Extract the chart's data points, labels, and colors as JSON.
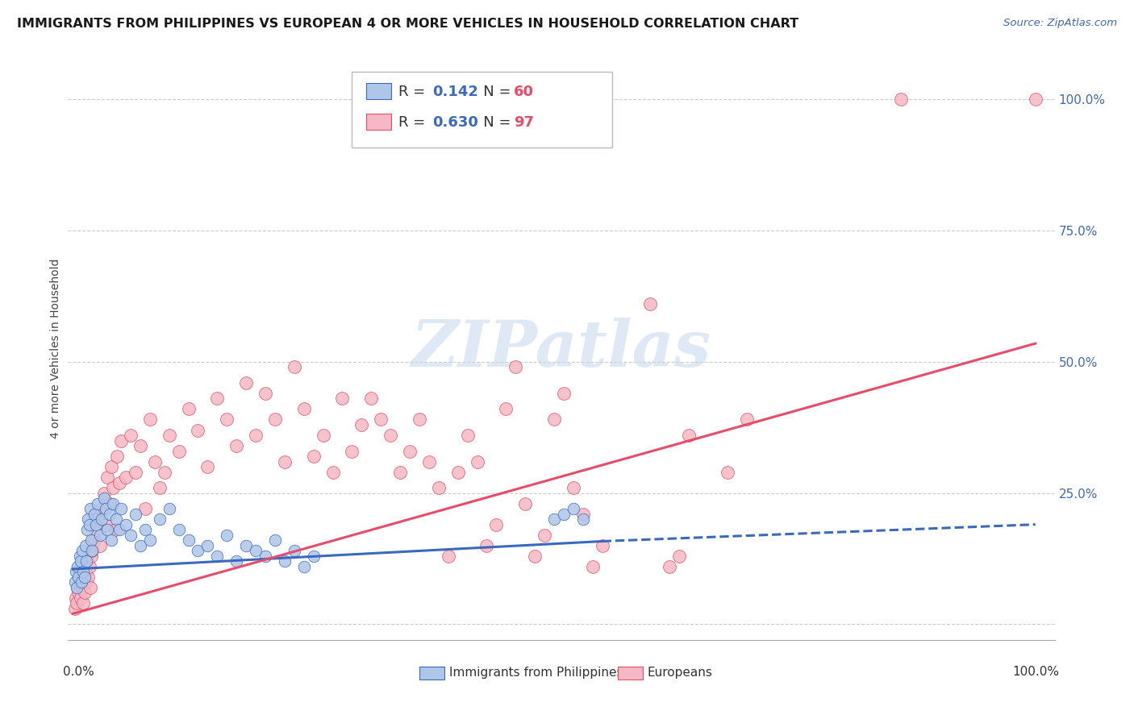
{
  "title": "IMMIGRANTS FROM PHILIPPINES VS EUROPEAN 4 OR MORE VEHICLES IN HOUSEHOLD CORRELATION CHART",
  "source": "Source: ZipAtlas.com",
  "ylabel": "4 or more Vehicles in Household",
  "legend_blue_R": "0.142",
  "legend_blue_N": "60",
  "legend_pink_R": "0.630",
  "legend_pink_N": "97",
  "blue_color": "#aec6e8",
  "pink_color": "#f5b8c4",
  "blue_line_color": "#3a6abf",
  "pink_line_color": "#e84c6a",
  "blue_scatter": [
    [
      0.002,
      0.08
    ],
    [
      0.003,
      0.1
    ],
    [
      0.004,
      0.07
    ],
    [
      0.005,
      0.11
    ],
    [
      0.006,
      0.09
    ],
    [
      0.007,
      0.13
    ],
    [
      0.008,
      0.12
    ],
    [
      0.009,
      0.08
    ],
    [
      0.01,
      0.14
    ],
    [
      0.011,
      0.1
    ],
    [
      0.012,
      0.09
    ],
    [
      0.013,
      0.15
    ],
    [
      0.014,
      0.12
    ],
    [
      0.015,
      0.18
    ],
    [
      0.016,
      0.2
    ],
    [
      0.017,
      0.19
    ],
    [
      0.018,
      0.22
    ],
    [
      0.019,
      0.16
    ],
    [
      0.02,
      0.14
    ],
    [
      0.022,
      0.21
    ],
    [
      0.024,
      0.19
    ],
    [
      0.026,
      0.23
    ],
    [
      0.028,
      0.17
    ],
    [
      0.03,
      0.2
    ],
    [
      0.032,
      0.24
    ],
    [
      0.034,
      0.22
    ],
    [
      0.036,
      0.18
    ],
    [
      0.038,
      0.21
    ],
    [
      0.04,
      0.16
    ],
    [
      0.042,
      0.23
    ],
    [
      0.045,
      0.2
    ],
    [
      0.048,
      0.18
    ],
    [
      0.05,
      0.22
    ],
    [
      0.055,
      0.19
    ],
    [
      0.06,
      0.17
    ],
    [
      0.065,
      0.21
    ],
    [
      0.07,
      0.15
    ],
    [
      0.075,
      0.18
    ],
    [
      0.08,
      0.16
    ],
    [
      0.09,
      0.2
    ],
    [
      0.1,
      0.22
    ],
    [
      0.11,
      0.18
    ],
    [
      0.12,
      0.16
    ],
    [
      0.13,
      0.14
    ],
    [
      0.14,
      0.15
    ],
    [
      0.15,
      0.13
    ],
    [
      0.16,
      0.17
    ],
    [
      0.17,
      0.12
    ],
    [
      0.18,
      0.15
    ],
    [
      0.19,
      0.14
    ],
    [
      0.2,
      0.13
    ],
    [
      0.21,
      0.16
    ],
    [
      0.22,
      0.12
    ],
    [
      0.23,
      0.14
    ],
    [
      0.24,
      0.11
    ],
    [
      0.25,
      0.13
    ],
    [
      0.5,
      0.2
    ],
    [
      0.51,
      0.21
    ],
    [
      0.52,
      0.22
    ],
    [
      0.53,
      0.2
    ]
  ],
  "pink_scatter": [
    [
      0.002,
      0.03
    ],
    [
      0.003,
      0.05
    ],
    [
      0.004,
      0.04
    ],
    [
      0.005,
      0.07
    ],
    [
      0.006,
      0.06
    ],
    [
      0.007,
      0.08
    ],
    [
      0.008,
      0.05
    ],
    [
      0.009,
      0.09
    ],
    [
      0.01,
      0.07
    ],
    [
      0.011,
      0.04
    ],
    [
      0.012,
      0.06
    ],
    [
      0.013,
      0.1
    ],
    [
      0.014,
      0.08
    ],
    [
      0.015,
      0.12
    ],
    [
      0.016,
      0.09
    ],
    [
      0.017,
      0.11
    ],
    [
      0.018,
      0.07
    ],
    [
      0.019,
      0.13
    ],
    [
      0.02,
      0.14
    ],
    [
      0.022,
      0.16
    ],
    [
      0.024,
      0.18
    ],
    [
      0.026,
      0.2
    ],
    [
      0.028,
      0.15
    ],
    [
      0.03,
      0.22
    ],
    [
      0.032,
      0.25
    ],
    [
      0.034,
      0.19
    ],
    [
      0.036,
      0.28
    ],
    [
      0.038,
      0.23
    ],
    [
      0.04,
      0.3
    ],
    [
      0.042,
      0.26
    ],
    [
      0.044,
      0.18
    ],
    [
      0.046,
      0.32
    ],
    [
      0.048,
      0.27
    ],
    [
      0.05,
      0.35
    ],
    [
      0.055,
      0.28
    ],
    [
      0.06,
      0.36
    ],
    [
      0.065,
      0.29
    ],
    [
      0.07,
      0.34
    ],
    [
      0.075,
      0.22
    ],
    [
      0.08,
      0.39
    ],
    [
      0.085,
      0.31
    ],
    [
      0.09,
      0.26
    ],
    [
      0.095,
      0.29
    ],
    [
      0.1,
      0.36
    ],
    [
      0.11,
      0.33
    ],
    [
      0.12,
      0.41
    ],
    [
      0.13,
      0.37
    ],
    [
      0.14,
      0.3
    ],
    [
      0.15,
      0.43
    ],
    [
      0.16,
      0.39
    ],
    [
      0.17,
      0.34
    ],
    [
      0.18,
      0.46
    ],
    [
      0.19,
      0.36
    ],
    [
      0.2,
      0.44
    ],
    [
      0.21,
      0.39
    ],
    [
      0.22,
      0.31
    ],
    [
      0.23,
      0.49
    ],
    [
      0.24,
      0.41
    ],
    [
      0.25,
      0.32
    ],
    [
      0.26,
      0.36
    ],
    [
      0.27,
      0.29
    ],
    [
      0.28,
      0.43
    ],
    [
      0.29,
      0.33
    ],
    [
      0.3,
      0.38
    ],
    [
      0.31,
      0.43
    ],
    [
      0.32,
      0.39
    ],
    [
      0.33,
      0.36
    ],
    [
      0.34,
      0.29
    ],
    [
      0.35,
      0.33
    ],
    [
      0.36,
      0.39
    ],
    [
      0.37,
      0.31
    ],
    [
      0.38,
      0.26
    ],
    [
      0.39,
      0.13
    ],
    [
      0.4,
      0.29
    ],
    [
      0.41,
      0.36
    ],
    [
      0.42,
      0.31
    ],
    [
      0.43,
      0.15
    ],
    [
      0.44,
      0.19
    ],
    [
      0.45,
      0.41
    ],
    [
      0.46,
      0.49
    ],
    [
      0.47,
      0.23
    ],
    [
      0.48,
      0.13
    ],
    [
      0.49,
      0.17
    ],
    [
      0.5,
      0.39
    ],
    [
      0.51,
      0.44
    ],
    [
      0.52,
      0.26
    ],
    [
      0.53,
      0.21
    ],
    [
      0.54,
      0.11
    ],
    [
      0.55,
      0.15
    ],
    [
      0.6,
      0.61
    ],
    [
      0.62,
      0.11
    ],
    [
      0.63,
      0.13
    ],
    [
      0.64,
      0.36
    ],
    [
      0.68,
      0.29
    ],
    [
      0.7,
      0.39
    ],
    [
      0.86,
      1.0
    ],
    [
      1.0,
      1.0
    ]
  ],
  "blue_line": [
    [
      0.0,
      0.105
    ],
    [
      0.55,
      0.158
    ]
  ],
  "blue_line_dash": [
    [
      0.55,
      0.158
    ],
    [
      1.0,
      0.19
    ]
  ],
  "pink_line": [
    [
      0.0,
      0.02
    ],
    [
      1.0,
      0.535
    ]
  ],
  "watermark": "ZIPatlas",
  "xlim": [
    -0.005,
    1.02
  ],
  "ylim": [
    -0.03,
    1.08
  ]
}
